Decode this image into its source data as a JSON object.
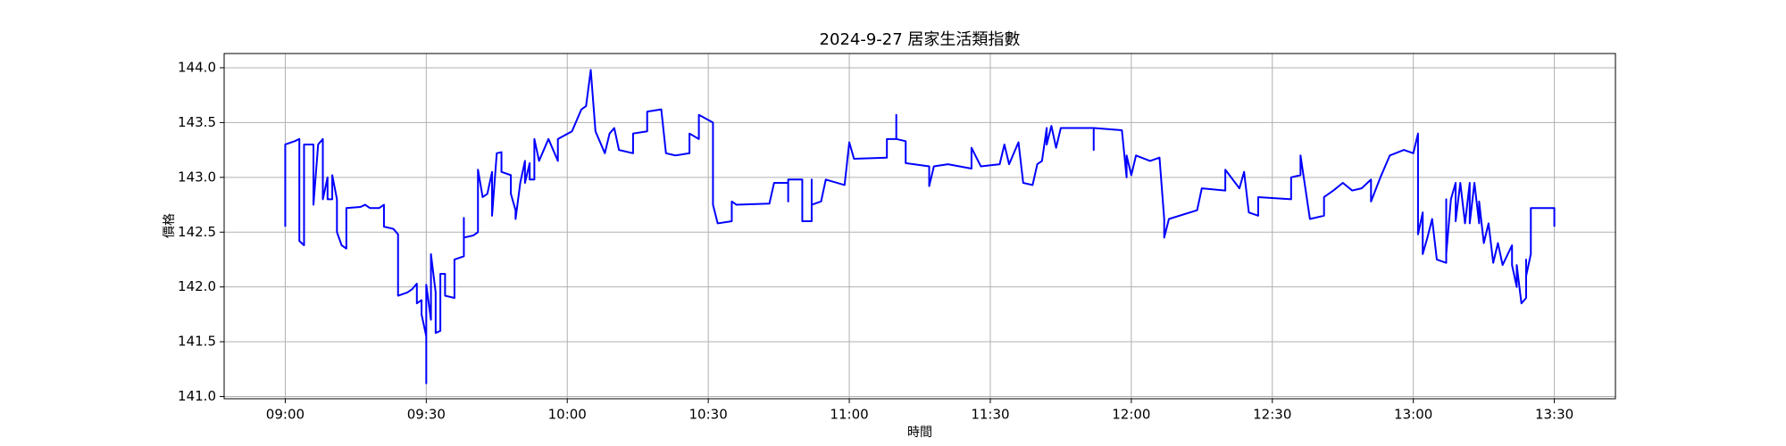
{
  "chart_data": {
    "type": "line",
    "title": "2024-9-27 居家生活類指數",
    "xlabel": "時間",
    "ylabel": "價格",
    "x": [
      "09:00",
      "09:00",
      "09:02",
      "09:03",
      "09:03",
      "09:04",
      "09:04",
      "09:06",
      "09:06",
      "09:07",
      "09:08",
      "09:08",
      "09:09",
      "09:09",
      "09:10",
      "09:10",
      "09:11",
      "09:11",
      "09:12",
      "09:13",
      "09:13",
      "09:16",
      "09:17",
      "09:18",
      "09:20",
      "09:21",
      "09:21",
      "09:23",
      "09:24",
      "09:24",
      "09:24",
      "09:26",
      "09:27",
      "09:28",
      "09:28",
      "09:29",
      "09:29",
      "09:30",
      "09:30",
      "09:30",
      "09:31",
      "09:31",
      "09:32",
      "09:32",
      "09:33",
      "09:33",
      "09:34",
      "09:34",
      "09:36",
      "09:36",
      "09:38",
      "09:38",
      "09:38",
      "09:40",
      "09:41",
      "09:41",
      "09:42",
      "09:43",
      "09:44",
      "09:44",
      "09:45",
      "09:46",
      "09:46",
      "09:48",
      "09:48",
      "09:49",
      "09:49",
      "09:50",
      "09:51",
      "09:51",
      "09:52",
      "09:52",
      "09:53",
      "09:53",
      "09:54",
      "09:56",
      "09:58",
      "09:58",
      "10:01",
      "10:03",
      "10:04",
      "10:05",
      "10:06",
      "10:08",
      "10:09",
      "10:10",
      "10:11",
      "10:14",
      "10:14",
      "10:17",
      "10:17",
      "10:20",
      "10:21",
      "10:23",
      "10:26",
      "10:26",
      "10:28",
      "10:28",
      "10:31",
      "10:31",
      "10:32",
      "10:35",
      "10:35",
      "10:36",
      "10:43",
      "10:44",
      "10:47",
      "10:47",
      "10:47",
      "10:50",
      "10:50",
      "10:52",
      "10:52",
      "10:52",
      "10:54",
      "10:55",
      "10:59",
      "11:00",
      "11:01",
      "11:08",
      "11:08",
      "11:10",
      "11:10",
      "11:10",
      "11:12",
      "11:12",
      "11:17",
      "11:17",
      "11:18",
      "11:21",
      "11:26",
      "11:26",
      "11:28",
      "11:32",
      "11:33",
      "11:34",
      "11:36",
      "11:37",
      "11:39",
      "11:40",
      "11:41",
      "11:42",
      "11:42",
      "11:43",
      "11:44",
      "11:45",
      "11:52",
      "11:52",
      "11:52",
      "11:58",
      "11:59",
      "11:59",
      "12:00",
      "12:01",
      "12:04",
      "12:06",
      "12:07",
      "12:07",
      "12:08",
      "12:14",
      "12:15",
      "12:20",
      "12:20",
      "12:23",
      "12:24",
      "12:25",
      "12:27",
      "12:27",
      "12:34",
      "12:34",
      "12:36",
      "12:36",
      "12:38",
      "12:41",
      "12:41",
      "12:43",
      "12:45",
      "12:47",
      "12:49",
      "12:51",
      "12:51",
      "12:53",
      "12:55",
      "12:58",
      "13:00",
      "13:01",
      "13:01",
      "13:02",
      "13:02",
      "13:03",
      "13:04",
      "13:05",
      "13:07",
      "13:07",
      "13:07",
      "13:08",
      "13:09",
      "13:09",
      "13:10",
      "13:11",
      "13:12",
      "13:12",
      "13:13",
      "13:14",
      "13:14",
      "13:15",
      "13:16",
      "13:17",
      "13:18",
      "13:19",
      "13:21",
      "13:21",
      "13:22",
      "13:22",
      "13:23",
      "13:24",
      "13:24",
      "13:24",
      "13:25",
      "13:25",
      "13:30",
      "13:30"
    ],
    "series": [
      {
        "color": "#0000ff",
        "values": [
          142.55,
          143.3,
          143.33,
          143.35,
          142.42,
          142.38,
          143.3,
          143.3,
          142.75,
          143.3,
          143.35,
          142.8,
          143.0,
          142.8,
          142.8,
          143.02,
          142.8,
          142.5,
          142.38,
          142.35,
          142.72,
          142.73,
          142.75,
          142.72,
          142.72,
          142.75,
          142.55,
          142.53,
          142.48,
          142.12,
          141.92,
          141.95,
          141.98,
          142.03,
          141.85,
          141.88,
          141.75,
          141.55,
          141.12,
          142.02,
          141.7,
          142.3,
          141.95,
          141.58,
          141.6,
          142.12,
          142.12,
          141.92,
          141.9,
          142.25,
          142.28,
          142.63,
          142.45,
          142.47,
          142.5,
          143.07,
          142.82,
          142.85,
          143.05,
          142.65,
          143.22,
          143.23,
          143.05,
          143.02,
          142.85,
          142.7,
          142.62,
          142.95,
          143.15,
          142.95,
          143.13,
          142.98,
          142.98,
          143.35,
          143.15,
          143.35,
          143.15,
          143.35,
          143.42,
          143.62,
          143.65,
          143.98,
          143.42,
          143.22,
          143.4,
          143.45,
          143.25,
          143.22,
          143.4,
          143.42,
          143.6,
          143.62,
          143.22,
          143.2,
          143.22,
          143.4,
          143.35,
          143.57,
          143.5,
          142.75,
          142.58,
          142.6,
          142.78,
          142.75,
          142.76,
          142.95,
          142.95,
          142.78,
          142.98,
          142.98,
          142.6,
          142.6,
          142.98,
          142.75,
          142.78,
          142.98,
          142.93,
          143.32,
          143.17,
          143.18,
          143.35,
          143.35,
          143.57,
          143.35,
          143.33,
          143.13,
          143.1,
          142.92,
          143.1,
          143.12,
          143.08,
          143.27,
          143.1,
          143.12,
          143.3,
          143.12,
          143.32,
          142.95,
          142.93,
          143.12,
          143.15,
          143.45,
          143.3,
          143.47,
          143.27,
          143.45,
          143.45,
          143.25,
          143.45,
          143.43,
          143.0,
          143.2,
          143.02,
          143.2,
          143.15,
          143.18,
          142.62,
          142.45,
          142.62,
          142.7,
          142.9,
          142.88,
          143.07,
          142.9,
          143.05,
          142.68,
          142.65,
          142.82,
          142.8,
          143.0,
          143.02,
          143.2,
          142.62,
          142.65,
          142.82,
          142.88,
          142.95,
          142.88,
          142.9,
          142.98,
          142.78,
          143.0,
          143.2,
          143.25,
          143.22,
          143.4,
          142.48,
          142.68,
          142.3,
          142.45,
          142.62,
          142.25,
          142.22,
          142.8,
          142.3,
          142.8,
          142.95,
          142.6,
          142.95,
          142.58,
          142.95,
          142.58,
          142.95,
          142.58,
          142.78,
          142.4,
          142.58,
          142.22,
          142.4,
          142.2,
          142.38,
          142.2,
          142.0,
          142.2,
          141.85,
          141.9,
          142.25,
          142.1,
          142.3,
          142.72,
          142.72,
          142.55
        ]
      }
    ],
    "xlim": [
      "08:47",
      "13:43"
    ],
    "xticks": [
      "09:00",
      "09:30",
      "10:00",
      "10:30",
      "11:00",
      "11:30",
      "12:00",
      "12:30",
      "13:00",
      "13:30"
    ],
    "ylim": [
      140.98,
      144.13
    ],
    "yticks": [
      {
        "value": 141,
        "label": "141.0"
      },
      {
        "value": 141.5,
        "label": "141.5"
      },
      {
        "value": 142,
        "label": "142.0"
      },
      {
        "value": 142.5,
        "label": "142.5"
      },
      {
        "value": 143,
        "label": "143.0"
      },
      {
        "value": 143.5,
        "label": "143.5"
      },
      {
        "value": 144,
        "label": "144.0"
      }
    ],
    "grid": true
  }
}
